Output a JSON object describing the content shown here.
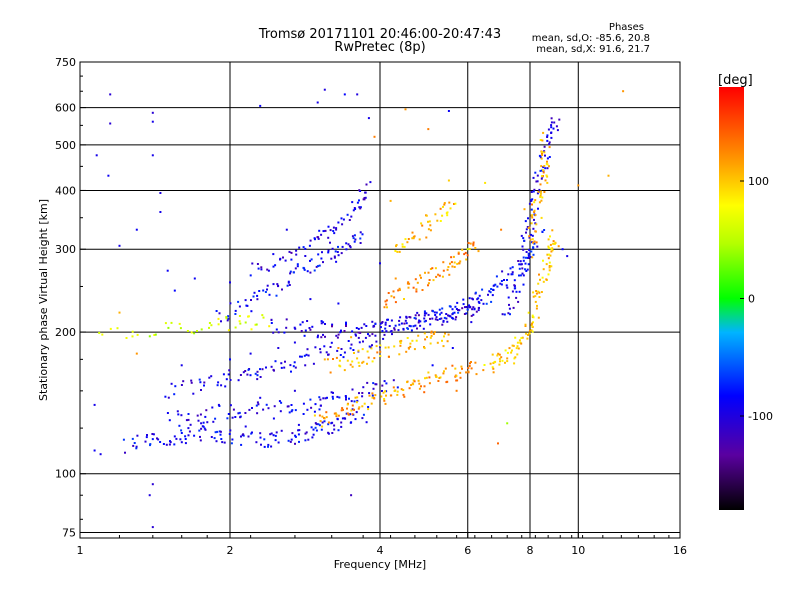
{
  "chart_data": {
    "type": "scatter",
    "title": "Tromsø 20171101 20:46:00-20:47:43",
    "subtitle": "RwPretec (8p)",
    "xlabel": "Frequency [MHz]",
    "ylabel": "Stationary phase Virtual Height [km]",
    "xscale": "log",
    "yscale": "log",
    "xlim": [
      1,
      16
    ],
    "ylim": [
      73,
      750
    ],
    "xticks": [
      1,
      2,
      4,
      6,
      8,
      10,
      16
    ],
    "xticklabels": [
      "1",
      "2",
      "4",
      "6",
      "8",
      "10",
      "16"
    ],
    "yticks": [
      75,
      100,
      200,
      300,
      400,
      500,
      600,
      750
    ],
    "yticklabels": [
      "75",
      "100",
      "200",
      "300",
      "400",
      "500",
      "600",
      "750"
    ],
    "grid": true,
    "colorbar": {
      "label": "[deg]",
      "range": [
        -180,
        180
      ],
      "ticks": [
        100,
        0,
        -100
      ],
      "ticklabels": [
        "100",
        "0",
        "-100"
      ]
    },
    "stats": {
      "title": "Phases",
      "o_line": "mean, sd,O: -85.6, 20.8",
      "x_line": "mean, sd,X:  91.6, 21.7"
    },
    "traces": [
      {
        "name": "",
        "phase": -95,
        "points": [
          [
            1.25,
            115
          ],
          [
            1.4,
            118
          ],
          [
            1.6,
            120
          ],
          [
            1.8,
            122
          ],
          [
            2.0,
            120
          ],
          [
            2.3,
            118
          ],
          [
            2.6,
            119
          ],
          [
            2.9,
            122
          ],
          [
            3.1,
            125
          ],
          [
            3.4,
            130
          ],
          [
            3.8,
            135
          ]
        ]
      },
      {
        "name": "",
        "phase": -100,
        "points": [
          [
            1.5,
            130
          ],
          [
            1.8,
            133
          ],
          [
            2.1,
            136
          ],
          [
            2.5,
            138
          ],
          [
            2.9,
            140
          ],
          [
            3.3,
            145
          ],
          [
            3.8,
            150
          ],
          [
            4.3,
            155
          ]
        ]
      },
      {
        "name": "",
        "phase": -100,
        "points": [
          [
            1.5,
            150
          ],
          [
            1.8,
            156
          ],
          [
            2.1,
            162
          ],
          [
            2.4,
            168
          ],
          [
            2.8,
            175
          ],
          [
            3.2,
            182
          ],
          [
            3.7,
            190
          ],
          [
            4.2,
            195
          ]
        ]
      },
      {
        "name": "",
        "phase": -110,
        "points": [
          [
            2.4,
            205
          ],
          [
            2.8,
            204
          ],
          [
            3.2,
            202
          ],
          [
            3.6,
            201
          ],
          [
            4.0,
            203
          ],
          [
            4.5,
            207
          ],
          [
            5.0,
            212
          ],
          [
            5.5,
            218
          ],
          [
            6.0,
            225
          ],
          [
            6.4,
            232
          ]
        ]
      },
      {
        "name": "",
        "phase": -95,
        "points": [
          [
            1.9,
            215
          ],
          [
            2.2,
            230
          ],
          [
            2.5,
            250
          ],
          [
            2.8,
            270
          ],
          [
            3.1,
            290
          ],
          [
            3.4,
            300
          ],
          [
            3.7,
            330
          ]
        ]
      },
      {
        "name": "",
        "phase": -105,
        "points": [
          [
            2.2,
            270
          ],
          [
            2.6,
            290
          ],
          [
            3.0,
            310
          ],
          [
            3.3,
            330
          ],
          [
            3.6,
            370
          ],
          [
            3.8,
            410
          ]
        ]
      },
      {
        "name": "",
        "phase": -90,
        "points": [
          [
            4.0,
            205
          ],
          [
            4.5,
            210
          ],
          [
            5.0,
            215
          ],
          [
            5.5,
            222
          ],
          [
            6.0,
            228
          ],
          [
            6.5,
            240
          ],
          [
            7.0,
            255
          ],
          [
            7.5,
            270
          ],
          [
            8.0,
            290
          ],
          [
            8.4,
            330
          ]
        ]
      },
      {
        "name": "",
        "phase": -100,
        "points": [
          [
            7.2,
            220
          ],
          [
            7.5,
            250
          ],
          [
            7.8,
            290
          ],
          [
            8.0,
            340
          ],
          [
            8.2,
            400
          ],
          [
            8.4,
            450
          ],
          [
            8.8,
            520
          ],
          [
            9.0,
            560
          ]
        ]
      },
      {
        "name": "",
        "phase": 115,
        "points": [
          [
            3.0,
            130
          ],
          [
            3.3,
            135
          ],
          [
            3.6,
            140
          ],
          [
            4.0,
            145
          ],
          [
            4.4,
            150
          ],
          [
            4.8,
            155
          ],
          [
            5.3,
            160
          ],
          [
            5.8,
            165
          ],
          [
            6.2,
            168
          ]
        ]
      },
      {
        "name": "",
        "phase": 110,
        "points": [
          [
            3.2,
            170
          ],
          [
            3.6,
            175
          ],
          [
            4.0,
            182
          ],
          [
            4.5,
            188
          ],
          [
            5.0,
            192
          ],
          [
            5.5,
            195
          ]
        ]
      },
      {
        "name": "",
        "phase": 120,
        "points": [
          [
            4.0,
            230
          ],
          [
            4.5,
            245
          ],
          [
            5.0,
            260
          ],
          [
            5.5,
            275
          ],
          [
            5.8,
            290
          ],
          [
            6.2,
            310
          ]
        ]
      },
      {
        "name": "",
        "phase": 105,
        "points": [
          [
            4.3,
            300
          ],
          [
            4.7,
            320
          ],
          [
            5.2,
            350
          ],
          [
            5.6,
            380
          ]
        ]
      },
      {
        "name": "",
        "phase": 100,
        "points": [
          [
            6.6,
            170
          ],
          [
            7.0,
            175
          ],
          [
            7.4,
            180
          ],
          [
            7.8,
            195
          ],
          [
            8.0,
            210
          ],
          [
            8.3,
            240
          ],
          [
            8.6,
            270
          ],
          [
            8.8,
            300
          ],
          [
            9.0,
            320
          ]
        ]
      },
      {
        "name": "",
        "phase": 110,
        "points": [
          [
            8.0,
            300
          ],
          [
            8.2,
            350
          ],
          [
            8.4,
            400
          ],
          [
            8.6,
            450
          ],
          [
            8.5,
            500
          ]
        ]
      },
      {
        "name": "",
        "phase": 60,
        "points": [
          [
            1.1,
            200
          ],
          [
            1.6,
            205
          ],
          [
            2.0,
            210
          ],
          [
            2.4,
            212
          ]
        ]
      }
    ],
    "scatter": [
      [
        1.07,
        140,
        -100
      ],
      [
        1.15,
        640,
        -110
      ],
      [
        1.15,
        555,
        -110
      ],
      [
        1.4,
        585,
        -110
      ],
      [
        1.4,
        560,
        -100
      ],
      [
        1.4,
        475,
        -100
      ],
      [
        1.45,
        395,
        -105
      ],
      [
        1.45,
        360,
        -100
      ],
      [
        1.3,
        330,
        -95
      ],
      [
        1.08,
        475,
        -100
      ],
      [
        1.14,
        430,
        -95
      ],
      [
        1.2,
        305,
        -100
      ],
      [
        1.5,
        270,
        -95
      ],
      [
        1.55,
        245,
        -90
      ],
      [
        1.4,
        95,
        -110
      ],
      [
        1.38,
        90,
        -105
      ],
      [
        1.4,
        77,
        -110
      ],
      [
        3.5,
        90,
        -120
      ],
      [
        10.0,
        410,
        120
      ],
      [
        12.3,
        650,
        120
      ],
      [
        11.5,
        430,
        110
      ],
      [
        3.1,
        655,
        -105
      ],
      [
        3.0,
        615,
        -100
      ],
      [
        3.6,
        640,
        -105
      ],
      [
        3.4,
        640,
        -90
      ],
      [
        3.8,
        570,
        -100
      ],
      [
        4.5,
        595,
        120
      ],
      [
        5.5,
        590,
        -95
      ],
      [
        2.3,
        605,
        -95
      ],
      [
        1.1,
        110,
        -100
      ],
      [
        1.07,
        112,
        -95
      ],
      [
        1.3,
        180,
        120
      ],
      [
        1.2,
        220,
        110
      ],
      [
        1.6,
        170,
        -100
      ],
      [
        2.6,
        330,
        -100
      ],
      [
        8.5,
        530,
        110
      ],
      [
        9.3,
        300,
        -90
      ],
      [
        9.5,
        290,
        -100
      ],
      [
        7.2,
        128,
        40
      ],
      [
        6.9,
        116,
        140
      ],
      [
        6.0,
        300,
        60
      ],
      [
        5.0,
        540,
        130
      ],
      [
        3.9,
        520,
        130
      ],
      [
        4.2,
        380,
        110
      ],
      [
        5.5,
        420,
        100
      ],
      [
        6.5,
        415,
        90
      ],
      [
        7.0,
        330,
        130
      ],
      [
        7.8,
        365,
        110
      ],
      [
        2.0,
        175,
        -90
      ],
      [
        2.2,
        180,
        -100
      ],
      [
        2.5,
        185,
        -105
      ],
      [
        2.7,
        190,
        -100
      ],
      [
        3.0,
        195,
        -95
      ],
      [
        1.9,
        140,
        -100
      ],
      [
        2.3,
        145,
        -100
      ],
      [
        2.7,
        150,
        -105
      ],
      [
        1.7,
        260,
        -95
      ],
      [
        2.0,
        255,
        -100
      ],
      [
        2.4,
        240,
        -90
      ],
      [
        2.9,
        235,
        -100
      ],
      [
        3.3,
        230,
        -95
      ],
      [
        4.0,
        280,
        -100
      ],
      [
        4.3,
        260,
        120
      ],
      [
        3.3,
        185,
        120
      ],
      [
        3.5,
        195,
        110
      ],
      [
        3.1,
        175,
        110
      ],
      [
        5.1,
        170,
        -90
      ],
      [
        5.6,
        185,
        -95
      ],
      [
        6.1,
        210,
        -100
      ],
      [
        5.7,
        150,
        130
      ],
      [
        1.55,
        120,
        -95
      ],
      [
        1.65,
        125,
        -100
      ],
      [
        1.75,
        128,
        -105
      ],
      [
        2.05,
        132,
        -95
      ],
      [
        2.15,
        126,
        -100
      ],
      [
        2.45,
        131,
        -95
      ],
      [
        2.75,
        127,
        -100
      ]
    ]
  }
}
